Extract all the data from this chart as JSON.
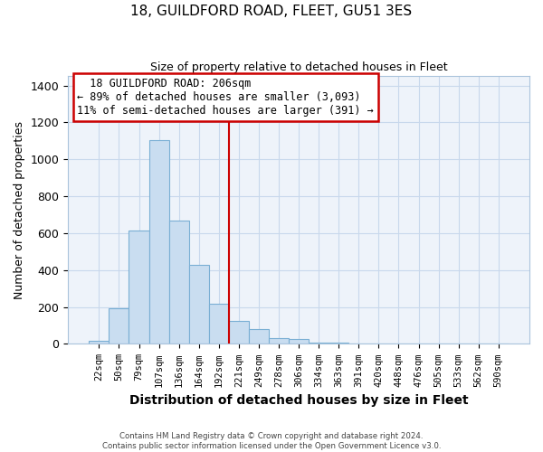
{
  "title": "18, GUILDFORD ROAD, FLEET, GU51 3ES",
  "subtitle": "Size of property relative to detached houses in Fleet",
  "xlabel": "Distribution of detached houses by size in Fleet",
  "ylabel": "Number of detached properties",
  "bar_labels": [
    "22sqm",
    "50sqm",
    "79sqm",
    "107sqm",
    "136sqm",
    "164sqm",
    "192sqm",
    "221sqm",
    "249sqm",
    "278sqm",
    "306sqm",
    "334sqm",
    "363sqm",
    "391sqm",
    "420sqm",
    "448sqm",
    "476sqm",
    "505sqm",
    "533sqm",
    "562sqm",
    "590sqm"
  ],
  "bar_values": [
    15,
    195,
    615,
    1105,
    670,
    430,
    220,
    125,
    80,
    30,
    25,
    5,
    5,
    2,
    1,
    0,
    0,
    0,
    0,
    0,
    0
  ],
  "bar_color": "#c9ddf0",
  "bar_edge_color": "#7aafd4",
  "annotation_title": "18 GUILDFORD ROAD: 206sqm",
  "annotation_line1": "← 89% of detached houses are smaller (3,093)",
  "annotation_line2": "11% of semi-detached houses are larger (391) →",
  "vline_x_index": 6.5,
  "vline_color": "#cc0000",
  "ylim": [
    0,
    1450
  ],
  "yticks": [
    0,
    200,
    400,
    600,
    800,
    1000,
    1200,
    1400
  ],
  "footer_line1": "Contains HM Land Registry data © Crown copyright and database right 2024.",
  "footer_line2": "Contains public sector information licensed under the Open Government Licence v3.0.",
  "background_color": "#ffffff",
  "plot_bg_color": "#eef3fa",
  "grid_color": "#c8d8ec"
}
